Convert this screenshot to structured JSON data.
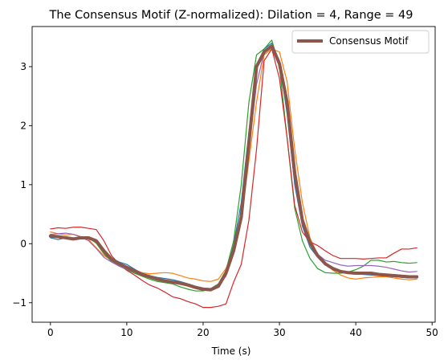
{
  "chart_data": {
    "type": "line",
    "title": "The Consensus Motif (Z-normalized): Dilation = 4, Range = 49",
    "xlabel": "Time (s)",
    "ylabel": "",
    "xlim": [
      -2.4,
      50.4
    ],
    "ylim": [
      -1.33,
      3.68
    ],
    "xticks": [
      0,
      10,
      20,
      30,
      40,
      50
    ],
    "yticks": [
      -1,
      0,
      1,
      2,
      3
    ],
    "xtick_labels": [
      "0",
      "10",
      "20",
      "30",
      "40",
      "50"
    ],
    "ytick_labels": [
      "−1",
      "0",
      "1",
      "2",
      "3"
    ],
    "grid": false,
    "legend_position": "top-right",
    "legend": [
      "Consensus Motif"
    ],
    "x": [
      0,
      1,
      2,
      3,
      4,
      5,
      6,
      7,
      8,
      9,
      10,
      11,
      12,
      13,
      14,
      15,
      16,
      17,
      18,
      19,
      20,
      21,
      22,
      23,
      24,
      25,
      26,
      27,
      28,
      29,
      30,
      31,
      32,
      33,
      34,
      35,
      36,
      37,
      38,
      39,
      40,
      41,
      42,
      43,
      44,
      45,
      46,
      47,
      48
    ],
    "series": [
      {
        "name": "",
        "color": "#1f77b4",
        "width": 1.2,
        "values": [
          0.1,
          0.07,
          0.1,
          0.09,
          0.11,
          0.1,
          0.02,
          -0.14,
          -0.24,
          -0.31,
          -0.35,
          -0.43,
          -0.5,
          -0.54,
          -0.57,
          -0.59,
          -0.61,
          -0.64,
          -0.68,
          -0.72,
          -0.75,
          -0.76,
          -0.72,
          -0.5,
          -0.02,
          0.7,
          1.9,
          3.0,
          3.3,
          3.4,
          3.1,
          2.2,
          1.0,
          0.3,
          -0.06,
          -0.23,
          -0.36,
          -0.43,
          -0.47,
          -0.5,
          -0.51,
          -0.52,
          -0.53,
          -0.54,
          -0.55,
          -0.56,
          -0.57,
          -0.58,
          -0.58
        ]
      },
      {
        "name": "",
        "color": "#ff7f0e",
        "width": 1.2,
        "values": [
          0.2,
          0.17,
          0.15,
          0.16,
          0.12,
          0.07,
          -0.07,
          -0.2,
          -0.28,
          -0.35,
          -0.4,
          -0.44,
          -0.49,
          -0.51,
          -0.5,
          -0.49,
          -0.5,
          -0.54,
          -0.58,
          -0.6,
          -0.63,
          -0.64,
          -0.6,
          -0.42,
          -0.1,
          0.4,
          1.4,
          2.4,
          3.2,
          3.3,
          3.25,
          2.75,
          1.6,
          0.7,
          0.1,
          -0.18,
          -0.33,
          -0.45,
          -0.53,
          -0.58,
          -0.6,
          -0.58,
          -0.57,
          -0.56,
          -0.56,
          -0.58,
          -0.6,
          -0.61,
          -0.6
        ]
      },
      {
        "name": "",
        "color": "#2ca02c",
        "width": 1.2,
        "values": [
          0.13,
          0.13,
          0.12,
          0.1,
          0.11,
          0.1,
          0.01,
          -0.17,
          -0.3,
          -0.38,
          -0.44,
          -0.5,
          -0.55,
          -0.6,
          -0.64,
          -0.66,
          -0.68,
          -0.73,
          -0.77,
          -0.8,
          -0.8,
          -0.76,
          -0.68,
          -0.45,
          0.05,
          1.0,
          2.4,
          3.2,
          3.3,
          3.45,
          3.0,
          1.8,
          0.6,
          0.05,
          -0.25,
          -0.42,
          -0.49,
          -0.5,
          -0.5,
          -0.48,
          -0.44,
          -0.38,
          -0.28,
          -0.28,
          -0.31,
          -0.3,
          -0.32,
          -0.33,
          -0.32
        ]
      },
      {
        "name": "",
        "color": "#d62728",
        "width": 1.2,
        "values": [
          0.25,
          0.27,
          0.26,
          0.28,
          0.28,
          0.26,
          0.24,
          0.05,
          -0.2,
          -0.35,
          -0.45,
          -0.53,
          -0.62,
          -0.7,
          -0.75,
          -0.82,
          -0.9,
          -0.93,
          -0.98,
          -1.02,
          -1.08,
          -1.08,
          -1.06,
          -1.02,
          -0.65,
          -0.35,
          0.4,
          1.6,
          3.1,
          3.3,
          2.8,
          1.8,
          0.65,
          0.2,
          0.03,
          -0.03,
          -0.12,
          -0.2,
          -0.25,
          -0.25,
          -0.25,
          -0.26,
          -0.25,
          -0.24,
          -0.24,
          -0.16,
          -0.09,
          -0.09,
          -0.07
        ]
      },
      {
        "name": "",
        "color": "#9467bd",
        "width": 1.2,
        "values": [
          0.16,
          0.17,
          0.18,
          0.16,
          0.11,
          0.05,
          -0.08,
          -0.23,
          -0.31,
          -0.38,
          -0.43,
          -0.48,
          -0.53,
          -0.57,
          -0.62,
          -0.64,
          -0.66,
          -0.68,
          -0.71,
          -0.75,
          -0.78,
          -0.76,
          -0.7,
          -0.55,
          -0.1,
          0.5,
          1.6,
          2.7,
          3.25,
          3.35,
          3.05,
          2.3,
          1.1,
          0.35,
          -0.02,
          -0.18,
          -0.28,
          -0.32,
          -0.36,
          -0.38,
          -0.37,
          -0.37,
          -0.37,
          -0.38,
          -0.4,
          -0.43,
          -0.46,
          -0.48,
          -0.47
        ]
      },
      {
        "name": "Consensus Motif",
        "color": "#8c564b",
        "width": 4,
        "values": [
          0.13,
          0.12,
          0.1,
          0.08,
          0.1,
          0.1,
          0.05,
          -0.12,
          -0.26,
          -0.34,
          -0.4,
          -0.46,
          -0.52,
          -0.56,
          -0.6,
          -0.63,
          -0.65,
          -0.67,
          -0.7,
          -0.74,
          -0.77,
          -0.78,
          -0.72,
          -0.5,
          -0.12,
          0.45,
          1.7,
          3.0,
          3.25,
          3.35,
          3.05,
          2.4,
          1.2,
          0.4,
          0.02,
          -0.2,
          -0.34,
          -0.42,
          -0.47,
          -0.49,
          -0.5,
          -0.5,
          -0.5,
          -0.52,
          -0.53,
          -0.54,
          -0.55,
          -0.56,
          -0.56
        ]
      }
    ]
  }
}
